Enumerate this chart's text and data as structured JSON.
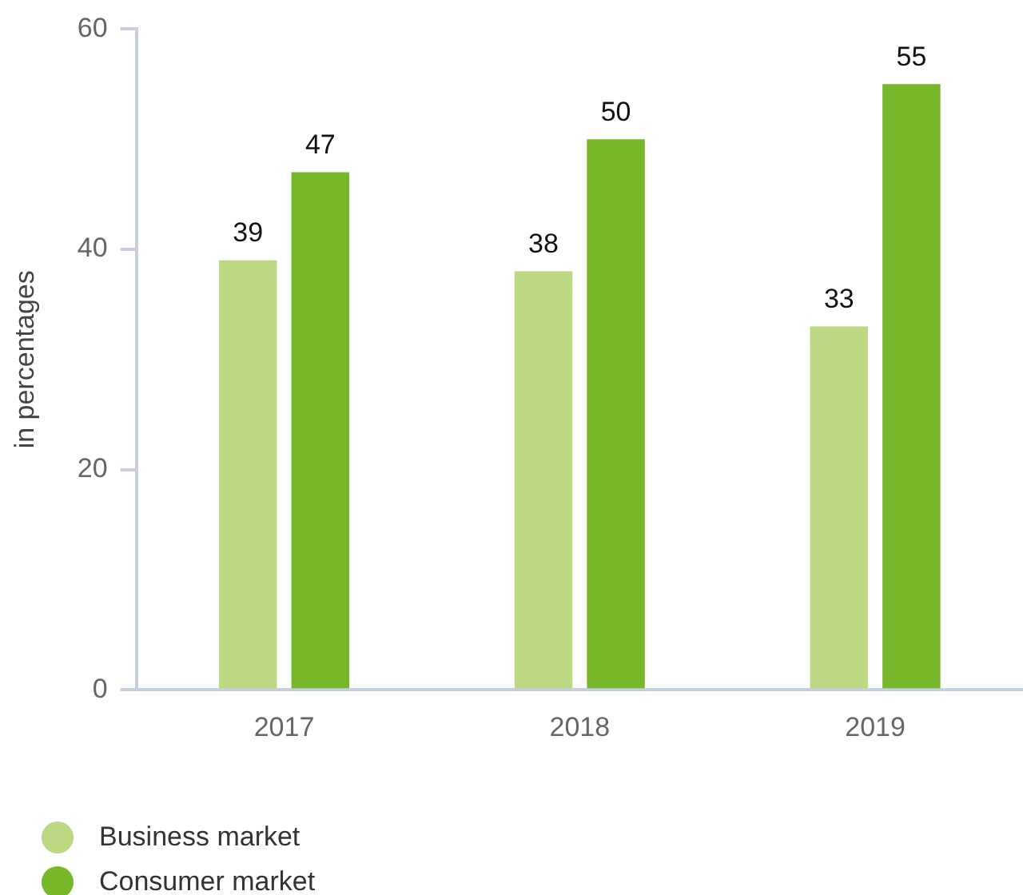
{
  "chart_data": {
    "type": "bar",
    "ylabel": "in percentages",
    "categories": [
      "2017",
      "2018",
      "2019"
    ],
    "series": [
      {
        "name": "Business market",
        "color": "#bdd882",
        "values": [
          39,
          38,
          33
        ]
      },
      {
        "name": "Consumer market",
        "color": "#76b82a",
        "values": [
          47,
          50,
          55
        ]
      }
    ],
    "ylim": [
      0,
      60
    ],
    "yticks": [
      0,
      20,
      40,
      60
    ],
    "grid": false,
    "legend": "bottom left",
    "data_labels": true
  }
}
